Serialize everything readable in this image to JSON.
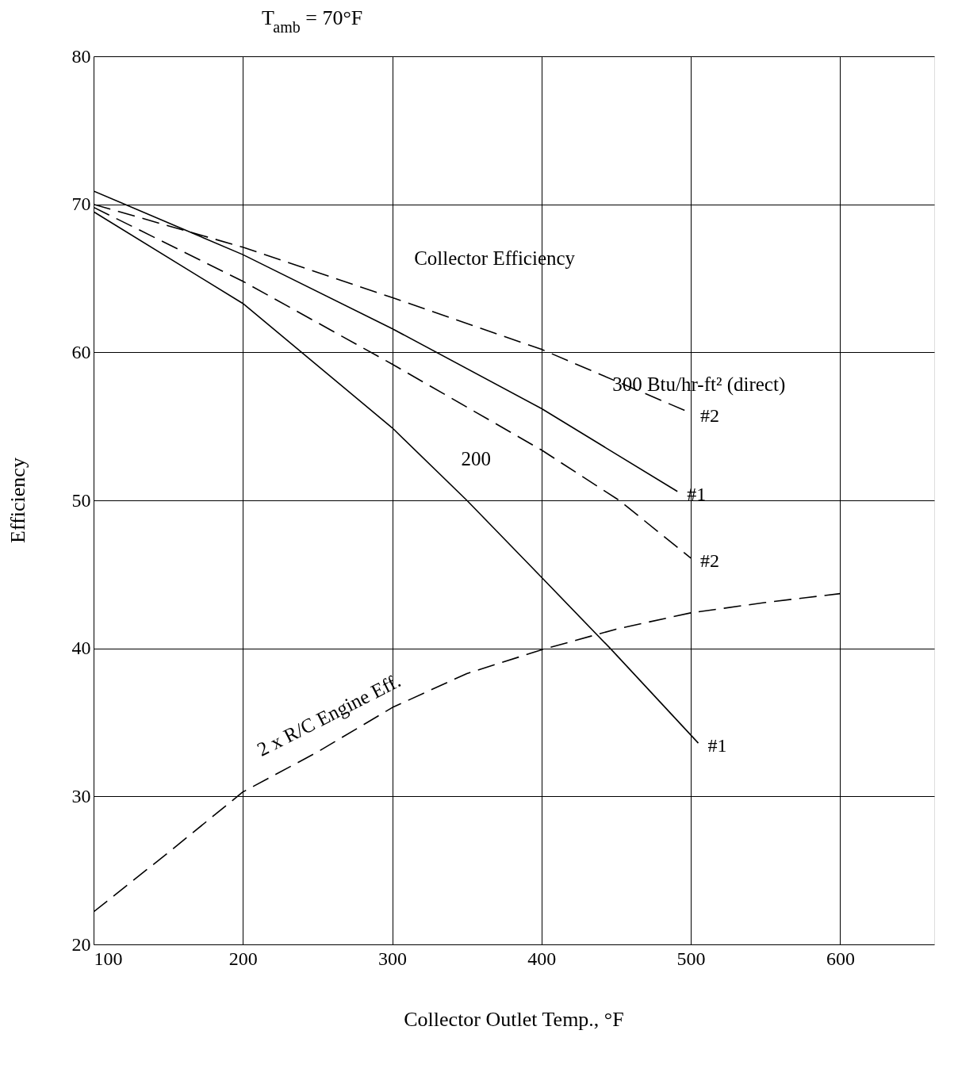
{
  "chart_data": {
    "type": "line",
    "title": "T$_{amb}$ = 70°F",
    "xlabel": "Collector Outlet Temp., °F",
    "ylabel": "Efficiency",
    "xlim": [
      100,
      663
    ],
    "ylim": [
      20,
      80
    ],
    "xticks": [
      100,
      200,
      300,
      400,
      500,
      600
    ],
    "yticks": [
      20,
      30,
      40,
      50,
      60,
      70,
      80
    ],
    "grid": true,
    "legend": false,
    "marker": "none",
    "series": [
      {
        "name": "#1",
        "color": "#000000",
        "line_style": "solid",
        "x": [
          100,
          200,
          300,
          400,
          491
        ],
        "values": [
          70.9,
          66.6,
          61.6,
          56.2,
          50.6
        ]
      },
      {
        "name": "#2",
        "color": "#000000",
        "line_style": "dashed",
        "x": [
          100,
          200,
          300,
          400,
          500
        ],
        "values": [
          70.0,
          67.1,
          63.7,
          60.2,
          55.9
        ]
      },
      {
        "name": "#1",
        "color": "#000000",
        "line_style": "solid",
        "x": [
          100,
          200,
          300,
          350,
          400,
          446,
          505
        ],
        "values": [
          69.5,
          63.3,
          54.9,
          50.0,
          44.8,
          40.0,
          33.6
        ]
      },
      {
        "name": "#2",
        "color": "#000000",
        "line_style": "dashed",
        "x": [
          100,
          200,
          300,
          400,
          452,
          500
        ],
        "values": [
          69.8,
          64.8,
          59.2,
          53.4,
          50.0,
          46.1
        ]
      },
      {
        "color": "#000000",
        "line_style": "dashed",
        "x": [
          100,
          150,
          200,
          250,
          300,
          350,
          400,
          450,
          500,
          550,
          600
        ],
        "values": [
          22.2,
          26.2,
          30.3,
          33.0,
          36.0,
          38.3,
          39.9,
          41.3,
          42.4,
          43.1,
          43.7
        ]
      }
    ],
    "annotations": [
      "Collector Efficiency",
      "300 Btu/hr-ft² (direct)",
      "200",
      "2 x R/C Engine Eff."
    ]
  }
}
